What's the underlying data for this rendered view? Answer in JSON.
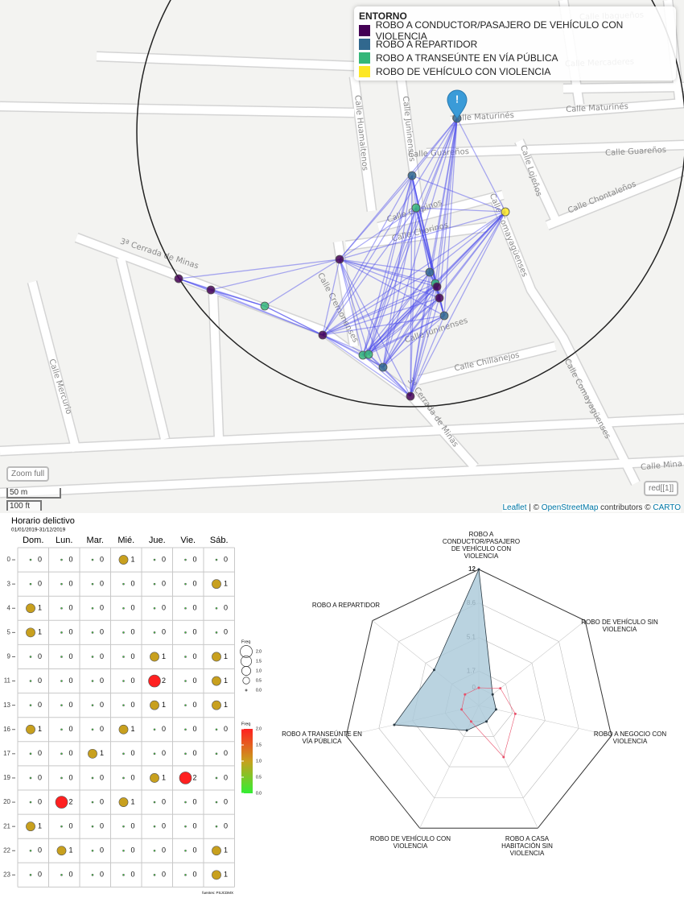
{
  "map": {
    "legend": {
      "title": "ENTORNO",
      "items": [
        {
          "name": "ROBO A CONDUCTOR/PASAJERO DE VEHÍCULO CON VIOLENCIA",
          "color": "#440154"
        },
        {
          "name": "ROBO A REPARTIDOR",
          "color": "#31688e"
        },
        {
          "name": "ROBO A TRANSEÚNTE EN VÍA PÚBLICA",
          "color": "#35b779"
        },
        {
          "name": "ROBO DE VEHÍCULO CON VIOLENCIA",
          "color": "#fde725"
        }
      ]
    },
    "streets": [
      "Calle Maturinés",
      "Calle Maturinés",
      "Calle Guareños",
      "Calle Guareños",
      "Calle Chontaleños",
      "Calle Lojeños",
      "Calle Comayagüenses",
      "Calle Comayagüenses",
      "Calle Juninenses",
      "Calle Huamaitenos",
      "Calle Galpinos",
      "Calle Chorinos",
      "3ª Cerrada de Minas",
      "3ª Cerrada de Minas",
      "Calle Chillanejos",
      "Calle Mercurio",
      "Calle Cremonenses",
      "Calle Mercaderes",
      "Calle Ibagueños",
      "Calle Mina",
      "Calle Juninenses"
    ],
    "controls": {
      "zoom": "Zoom full",
      "layer": "red[[1]]",
      "scale_metric": "50 m",
      "scale_imperial": "100 ft"
    },
    "attribution": [
      "Leaflet",
      " | © ",
      "OpenStreetMap",
      " contributors © ",
      "CARTO"
    ]
  },
  "chart_data": [
    {
      "type": "dot-matrix",
      "title": "Horario delictivo",
      "subtitle": "01/01/2019-31/12/2019",
      "categories": [
        "Dom.",
        "Lun.",
        "Mar.",
        "Mié.",
        "Jue.",
        "Vie.",
        "Sáb."
      ],
      "rows": [
        "0",
        "3",
        "4",
        "5",
        "9",
        "11",
        "13",
        "16",
        "17",
        "19",
        "20",
        "21",
        "22",
        "23"
      ],
      "values": [
        [
          0,
          0,
          0,
          1,
          0,
          0,
          0
        ],
        [
          0,
          0,
          0,
          0,
          0,
          0,
          1
        ],
        [
          1,
          0,
          0,
          0,
          0,
          0,
          0
        ],
        [
          1,
          0,
          0,
          0,
          0,
          0,
          0
        ],
        [
          0,
          0,
          0,
          0,
          1,
          0,
          1
        ],
        [
          0,
          0,
          0,
          0,
          2,
          0,
          1
        ],
        [
          0,
          0,
          0,
          0,
          1,
          0,
          1
        ],
        [
          1,
          0,
          0,
          1,
          0,
          0,
          0
        ],
        [
          0,
          0,
          1,
          0,
          0,
          0,
          0
        ],
        [
          0,
          0,
          0,
          0,
          1,
          2,
          0
        ],
        [
          0,
          2,
          0,
          1,
          0,
          0,
          0
        ],
        [
          1,
          0,
          0,
          0,
          0,
          0,
          0
        ],
        [
          0,
          1,
          0,
          0,
          0,
          0,
          1
        ],
        [
          0,
          0,
          0,
          0,
          0,
          0,
          1
        ]
      ],
      "size_legend": {
        "title": "Freq",
        "ticks": [
          {
            "value": 2,
            "label": "2.0"
          },
          {
            "value": 1.5,
            "label": "1.5"
          },
          {
            "value": 1,
            "label": "1.0"
          },
          {
            "value": 0.5,
            "label": "0.5"
          },
          {
            "value": 0,
            "label": "0.0"
          }
        ]
      },
      "color_legend": {
        "title": "Freq",
        "ticks": [
          {
            "value": 2,
            "label": "2.0"
          },
          {
            "value": 1.5,
            "label": "1.5"
          },
          {
            "value": 1,
            "label": "1.0"
          },
          {
            "value": 0.5,
            "label": "0.5"
          },
          {
            "value": 0,
            "label": "0.0"
          }
        ],
        "colors": [
          "#33ee33",
          "#c8a01e",
          "#ff2020"
        ]
      },
      "source": "fuentes: PSJCDMX"
    },
    {
      "type": "radar",
      "axes": [
        "ROBO A CONDUCTOR/PASAJERO DE VEHÍCULO CON VIOLENCIA",
        "ROBO DE VEHÍCULO SIN VIOLENCIA",
        "ROBO A NEGOCIO CON VIOLENCIA",
        "ROBO A CASA HABITACIÓN SIN VIOLENCIA",
        "ROBO DE VEHÍCULO CON VIOLENCIA",
        "ROBO A TRANSEÚNTE EN VÍA PÚBLICA",
        "ROBO A REPARTIDOR"
      ],
      "ylim": [
        0,
        12
      ],
      "yticks": [
        0,
        1.7,
        5.1,
        8.6,
        12
      ],
      "series": [
        {
          "color": "#2b3a44",
          "fill": "#a9c8d8",
          "values": [
            12,
            0,
            0,
            0,
            1,
            7,
            4
          ]
        },
        {
          "color": "#e8506a",
          "values": [
            0,
            1,
            2,
            4,
            0,
            0,
            0
          ]
        }
      ]
    }
  ]
}
